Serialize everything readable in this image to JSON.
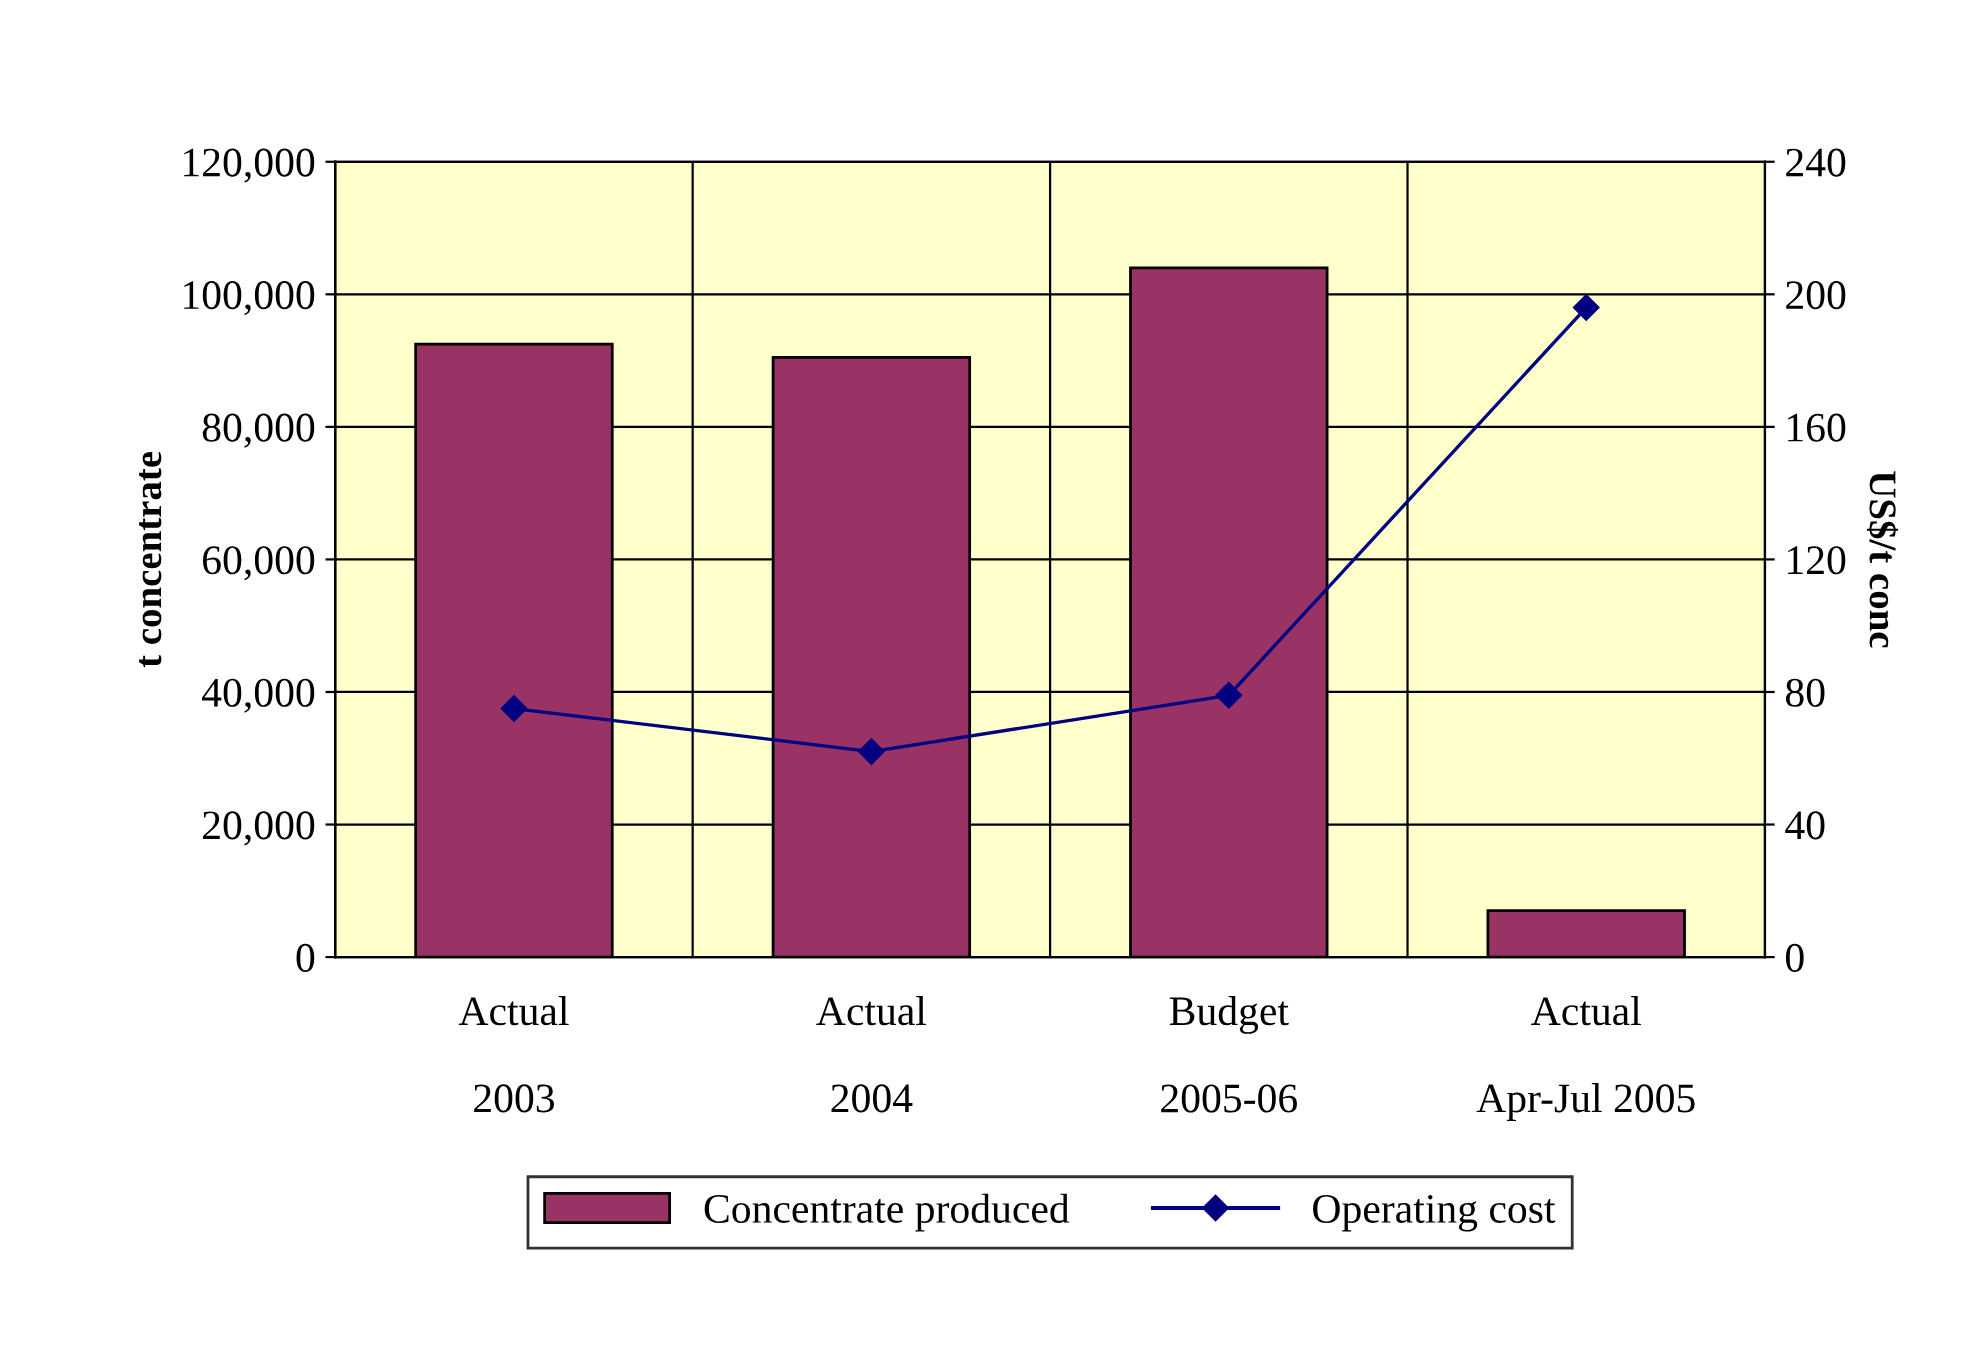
{
  "chart_data": {
    "type": "bar",
    "categories": [
      "Actual\n\n2003",
      "Actual\n\n2004",
      "Budget\n\n2005-06",
      "Actual\n\nApr-Jul 2005"
    ],
    "series": [
      {
        "name": "Concentrate produced",
        "color": "#993366",
        "values": [
          92500,
          90500,
          104000,
          7000
        ]
      },
      {
        "name": "Operating cost",
        "type": "line",
        "axis": "y2",
        "color": "#000080",
        "marker": "diamond",
        "values": [
          75,
          62,
          79,
          196
        ]
      }
    ],
    "ylabel": "t concentrate",
    "y2label": "US$/t conc",
    "ylim": [
      0,
      120000
    ],
    "yticks": [
      {
        "value": 0,
        "label": "0"
      },
      {
        "value": 20000,
        "label": "20,000"
      },
      {
        "value": 40000,
        "label": "40,000"
      },
      {
        "value": 60000,
        "label": "60,000"
      },
      {
        "value": 80000,
        "label": "80,000"
      },
      {
        "value": 100000,
        "label": "100,000"
      },
      {
        "value": 120000,
        "label": "120,000"
      }
    ],
    "y2lim": [
      0,
      240
    ],
    "y2ticks": [
      0,
      40,
      80,
      120,
      160,
      200,
      240
    ],
    "grid": true,
    "legend": "bottom"
  }
}
